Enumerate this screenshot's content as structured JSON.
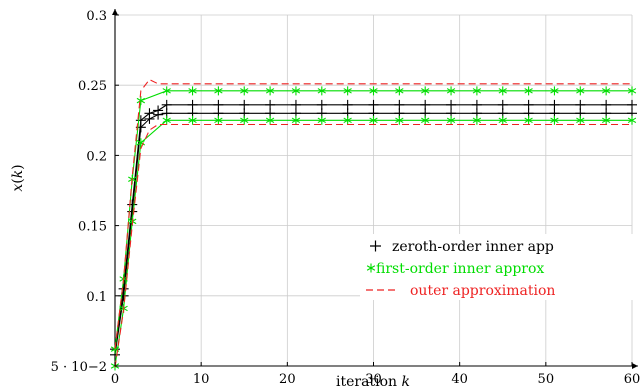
{
  "chart_data": {
    "type": "line",
    "title": "",
    "xlabel": "iteration k",
    "xlabel_text": "iteration",
    "xlabel_var": "k",
    "ylabel": "x(k)",
    "xlim": [
      0,
      60
    ],
    "ylim": [
      0.05,
      0.3
    ],
    "grid": true,
    "legend_position": "right",
    "x_ticks": [
      {
        "value": 0,
        "label": "0"
      },
      {
        "value": 10,
        "label": "10"
      },
      {
        "value": 20,
        "label": "20"
      },
      {
        "value": 30,
        "label": "30"
      },
      {
        "value": 40,
        "label": "40"
      },
      {
        "value": 50,
        "label": "50"
      },
      {
        "value": 60,
        "label": "60"
      }
    ],
    "y_ticks": [
      {
        "value": 0.05,
        "label": "5 · 10−2"
      },
      {
        "value": 0.1,
        "label": "0.1"
      },
      {
        "value": 0.15,
        "label": "0.15"
      },
      {
        "value": 0.2,
        "label": "0.2"
      },
      {
        "value": 0.25,
        "label": "0.25"
      },
      {
        "value": 0.3,
        "label": "0.3"
      }
    ],
    "series": [
      {
        "name": "zeroth-order inner app",
        "color": "#000000",
        "marker": "+",
        "dash": "solid",
        "curves": [
          {
            "x": [
              0,
              1,
              2,
              3,
              4,
              5,
              6,
              9,
              12,
              15,
              18,
              21,
              24,
              27,
              30,
              33,
              36,
              39,
              42,
              45,
              48,
              51,
              54,
              57,
              60
            ],
            "y": [
              0.062,
              0.105,
              0.165,
              0.225,
              0.23,
              0.232,
              0.236,
              0.236,
              0.236,
              0.236,
              0.236,
              0.236,
              0.236,
              0.236,
              0.236,
              0.236,
              0.236,
              0.236,
              0.236,
              0.236,
              0.236,
              0.236,
              0.236,
              0.236,
              0.236
            ]
          },
          {
            "x": [
              0,
              1,
              2,
              3,
              4,
              5,
              6,
              9,
              12,
              15,
              18,
              21,
              24,
              27,
              30,
              33,
              36,
              39,
              42,
              45,
              48,
              51,
              54,
              57,
              60
            ],
            "y": [
              0.058,
              0.1,
              0.16,
              0.22,
              0.226,
              0.229,
              0.23,
              0.23,
              0.23,
              0.23,
              0.23,
              0.23,
              0.23,
              0.23,
              0.23,
              0.23,
              0.23,
              0.23,
              0.23,
              0.23,
              0.23,
              0.23,
              0.23,
              0.23,
              0.23
            ]
          }
        ]
      },
      {
        "name": "first-order inner approx",
        "color": "#00dd00",
        "marker": "*",
        "dash": "solid",
        "curves": [
          {
            "x": [
              0,
              1,
              2,
              3,
              6,
              9,
              12,
              15,
              18,
              21,
              24,
              27,
              30,
              33,
              36,
              39,
              42,
              45,
              48,
              51,
              54,
              57,
              60
            ],
            "y": [
              0.062,
              0.112,
              0.183,
              0.239,
              0.246,
              0.246,
              0.246,
              0.246,
              0.246,
              0.246,
              0.246,
              0.246,
              0.246,
              0.246,
              0.246,
              0.246,
              0.246,
              0.246,
              0.246,
              0.246,
              0.246,
              0.246,
              0.246
            ]
          },
          {
            "x": [
              0,
              1,
              2,
              3,
              6,
              9,
              12,
              15,
              18,
              21,
              24,
              27,
              30,
              33,
              36,
              39,
              42,
              45,
              48,
              51,
              54,
              57,
              60
            ],
            "y": [
              0.05,
              0.091,
              0.153,
              0.209,
              0.225,
              0.225,
              0.225,
              0.225,
              0.225,
              0.225,
              0.225,
              0.225,
              0.225,
              0.225,
              0.225,
              0.225,
              0.225,
              0.225,
              0.225,
              0.225,
              0.225,
              0.225,
              0.225
            ]
          }
        ]
      },
      {
        "name": "outer approximation",
        "color": "#ee2222",
        "marker": "",
        "dash": "dashed",
        "curves": [
          {
            "x": [
              0,
              1,
              2,
              3,
              4,
              5,
              60
            ],
            "y": [
              0.062,
              0.112,
              0.185,
              0.246,
              0.254,
              0.251,
              0.251
            ]
          },
          {
            "x": [
              0,
              1,
              2,
              3,
              4,
              5,
              60
            ],
            "y": [
              0.049,
              0.09,
              0.15,
              0.205,
              0.218,
              0.222,
              0.222
            ]
          }
        ]
      }
    ]
  }
}
